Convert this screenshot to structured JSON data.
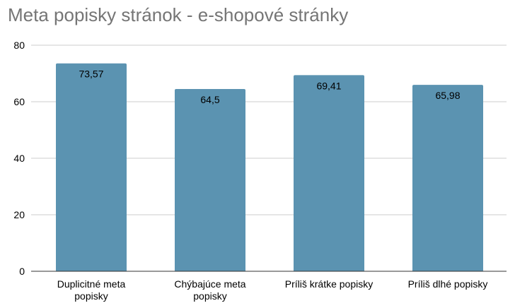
{
  "chart_data": {
    "type": "bar",
    "title": "Meta popisky stránok - e-shopové stránky",
    "categories": [
      [
        "Duplicitné meta",
        "popisky"
      ],
      [
        "Chýbajúce meta",
        "popisky"
      ],
      [
        "Príliš krátke popisky"
      ],
      [
        "Príliš dlhé popisky"
      ]
    ],
    "values": [
      73.57,
      64.5,
      69.41,
      65.98
    ],
    "data_labels": [
      "73,57",
      "64,5",
      "69,41",
      "65,98"
    ],
    "ylim": [
      0,
      80
    ],
    "yticks": [
      0,
      20,
      40,
      60,
      80
    ],
    "grid": true,
    "legend": "none",
    "colors": {
      "bar": "#5b93b1",
      "grid": "#cccccc",
      "axis": "#333333"
    }
  }
}
